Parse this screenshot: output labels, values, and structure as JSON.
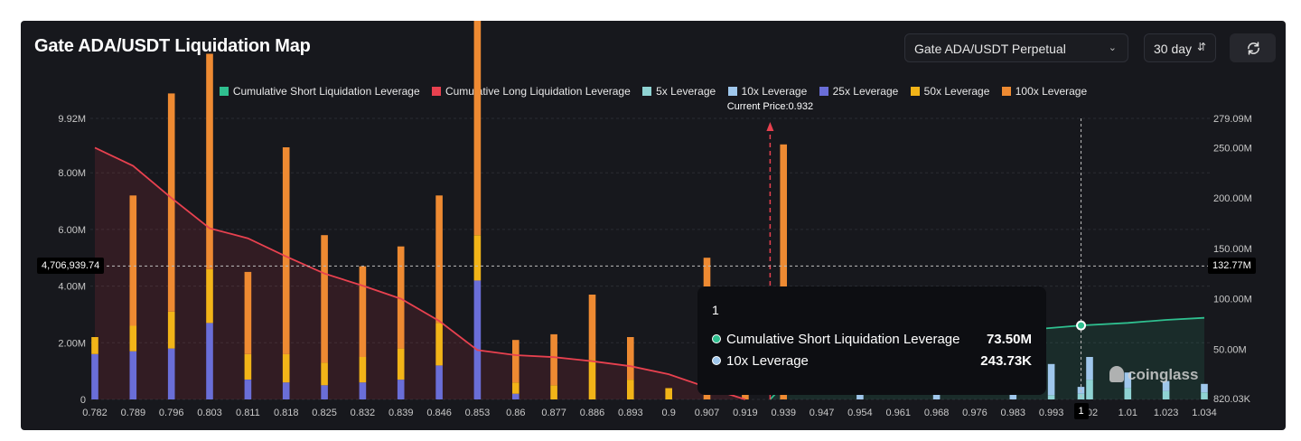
{
  "header": {
    "title": "Gate ADA/USDT Liquidation Map",
    "pair_select": "Gate ADA/USDT Perpetual",
    "range_select": "30 day",
    "refresh_icon": "refresh-icon"
  },
  "legend": [
    {
      "label": "Cumulative Short Liquidation Leverage",
      "color": "#2fbf8f"
    },
    {
      "label": "Cumulative Long Liquidation Leverage",
      "color": "#e8414f"
    },
    {
      "label": "5x Leverage",
      "color": "#8fd3d3"
    },
    {
      "label": "10x Leverage",
      "color": "#9fc7ec"
    },
    {
      "label": "25x Leverage",
      "color": "#6a6ed8"
    },
    {
      "label": "50x Leverage",
      "color": "#f2b418"
    },
    {
      "label": "100x Leverage",
      "color": "#ee8a32"
    }
  ],
  "current_price_label": "Current Price:0.932",
  "crosshair": {
    "left_value_label": "4,706,939.74",
    "right_value_label": "132.77M",
    "x_label": "1"
  },
  "tooltip": {
    "title": "1",
    "rows": [
      {
        "label": "Cumulative Short Liquidation Leverage",
        "value": "73.50M",
        "color": "#2fbf8f"
      },
      {
        "label": "10x Leverage",
        "value": "243.73K",
        "color": "#9fc7ec"
      }
    ]
  },
  "watermark": "coinglass",
  "chart_data": {
    "type": "bar",
    "x_tick_labels": [
      "0.782",
      "0.789",
      "0.796",
      "0.803",
      "0.811",
      "0.818",
      "0.825",
      "0.832",
      "0.839",
      "0.846",
      "0.853",
      "0.86",
      "0.877",
      "0.886",
      "0.893",
      "0.9",
      "0.907",
      "0.919",
      "0.939",
      "0.947",
      "0.954",
      "0.961",
      "0.968",
      "0.976",
      "0.983",
      "0.993",
      "002",
      "1.01",
      "1.023",
      "1.034"
    ],
    "left_axis": {
      "ticks": [
        "0",
        "2.00M",
        "4.00M",
        "6.00M",
        "8.00M",
        "9.92M"
      ],
      "values": [
        0,
        2000000,
        4000000,
        6000000,
        8000000,
        9920000
      ],
      "range": [
        0,
        9920000
      ]
    },
    "right_axis": {
      "ticks": [
        "820.03K",
        "50.00M",
        "100.00M",
        "150.00M",
        "200.00M",
        "250.00M",
        "279.09M"
      ],
      "values": [
        820030,
        50000000,
        100000000,
        150000000,
        200000000,
        250000000,
        279090000
      ],
      "range": [
        0,
        279090000
      ]
    },
    "current_price": 0.932,
    "series": [
      {
        "name": "Cumulative Long Liquidation Leverage",
        "type": "line",
        "axis": "right",
        "x": [
          0.782,
          0.789,
          0.796,
          0.803,
          0.811,
          0.818,
          0.825,
          0.832,
          0.839,
          0.846,
          0.853,
          0.86,
          0.877,
          0.886,
          0.893,
          0.9,
          0.907,
          0.919
        ],
        "y": [
          250000000,
          232000000,
          200000000,
          170000000,
          160000000,
          142000000,
          125000000,
          113000000,
          100000000,
          78000000,
          49000000,
          44000000,
          42000000,
          38000000,
          33000000,
          25000000,
          12000000,
          0
        ]
      },
      {
        "name": "Cumulative Short Liquidation Leverage",
        "type": "line",
        "axis": "right",
        "x": [
          0.932,
          0.939,
          0.947,
          0.954,
          0.961,
          0.968,
          0.976,
          0.983,
          0.993,
          1.0,
          1.01,
          1.023,
          1.034
        ],
        "y": [
          0,
          14000000,
          40000000,
          55000000,
          60000000,
          64000000,
          66000000,
          68000000,
          71000000,
          73500000,
          76000000,
          79000000,
          81000000
        ]
      },
      {
        "name": "5x Leverage",
        "type": "bar",
        "axis": "left",
        "x": [
          0.993,
          1.0,
          1.002,
          1.01,
          1.023,
          1.034
        ],
        "y": [
          150000,
          200000,
          700000,
          400000,
          300000,
          250000
        ]
      },
      {
        "name": "10x Leverage",
        "type": "bar",
        "axis": "left",
        "x": [
          0.954,
          0.968,
          0.983,
          0.993,
          1.0,
          1.002,
          1.01,
          1.023,
          1.034
        ],
        "y": [
          500000,
          450000,
          600000,
          1100000,
          243730,
          800000,
          550000,
          350000,
          300000
        ]
      },
      {
        "name": "25x Leverage",
        "type": "bar",
        "axis": "left",
        "x": [
          0.782,
          0.789,
          0.796,
          0.803,
          0.811,
          0.818,
          0.825,
          0.832,
          0.839,
          0.846,
          0.853,
          0.86
        ],
        "y": [
          1600000,
          1700000,
          1800000,
          2700000,
          700000,
          600000,
          500000,
          600000,
          700000,
          1200000,
          4200000,
          200000
        ]
      },
      {
        "name": "50x Leverage",
        "type": "bar",
        "axis": "left",
        "x": [
          0.782,
          0.789,
          0.796,
          0.803,
          0.811,
          0.818,
          0.825,
          0.832,
          0.839,
          0.846,
          0.853,
          0.86,
          0.877,
          0.886,
          0.893,
          0.9
        ],
        "y": [
          600000,
          900000,
          1300000,
          1900000,
          900000,
          1000000,
          800000,
          900000,
          1100000,
          1500000,
          1600000,
          400000,
          500000,
          1400000,
          700000,
          400000
        ]
      },
      {
        "name": "100x Leverage",
        "type": "bar",
        "axis": "left",
        "x": [
          0.789,
          0.796,
          0.803,
          0.811,
          0.818,
          0.825,
          0.832,
          0.839,
          0.846,
          0.853,
          0.86,
          0.877,
          0.886,
          0.893,
          0.907,
          0.919,
          0.939
        ],
        "y": [
          4600000,
          7700000,
          7600000,
          2900000,
          7300000,
          4500000,
          3200000,
          3600000,
          4500000,
          8600000,
          1500000,
          1800000,
          2300000,
          1500000,
          5000000,
          500000,
          9000000
        ]
      }
    ],
    "ylim_left": [
      0,
      9920000
    ],
    "ylim_right": [
      0,
      279090000
    ],
    "grid": true,
    "legend_position": "top-center"
  }
}
